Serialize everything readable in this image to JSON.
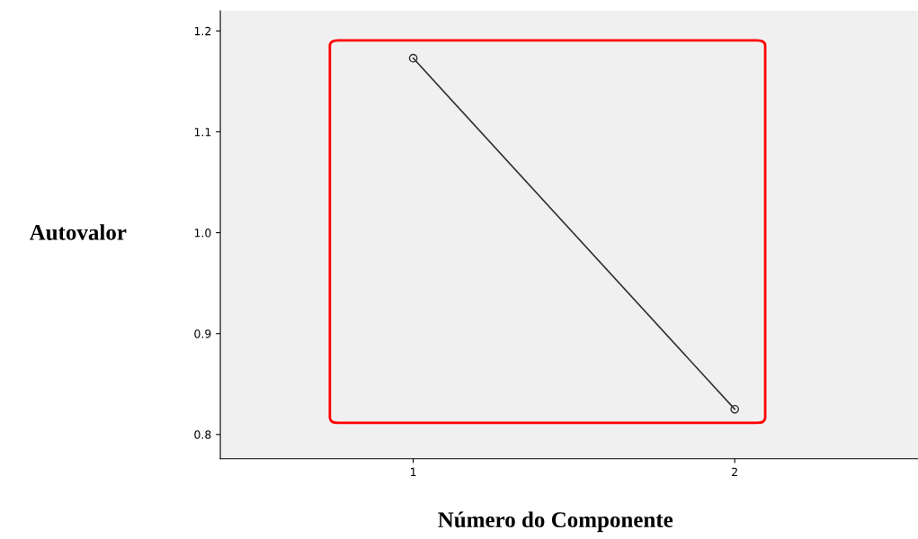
{
  "chart_data": {
    "type": "line",
    "xlabel": "Número do Componente",
    "ylabel": "Autovalor",
    "x": [
      1,
      2
    ],
    "series": [
      {
        "color": "#333333",
        "values": [
          1.173,
          0.825
        ]
      }
    ],
    "marker": "circle",
    "line_style": "solid",
    "xlim": [
      0.4,
      2.57
    ],
    "xticks": [
      1,
      2
    ],
    "ylim": [
      0.776,
      1.22
    ],
    "yticks": [
      0.8,
      0.9,
      {
        "value": 1.0,
        "label": "1.0"
      },
      1.1,
      1.2
    ],
    "grid": false,
    "legend": false
  }
}
